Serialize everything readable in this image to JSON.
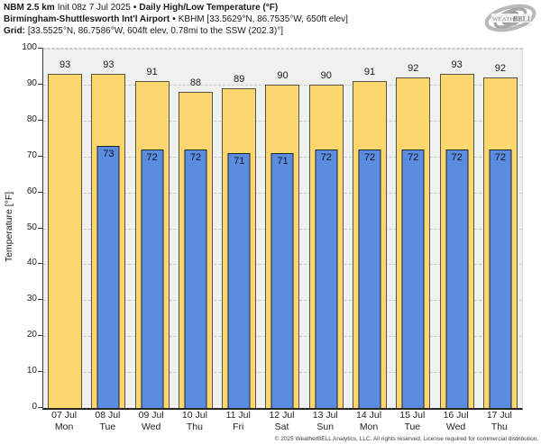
{
  "header": {
    "line1": {
      "model": "NBM 2.5 km",
      "init": "Init 08z 7 Jul 2025",
      "bullet": "•",
      "title": "Daily High/Low Temperature (°F)"
    },
    "line2": {
      "station": "Birmingham-Shuttlesworth Int'l Airport",
      "bullet": "•",
      "details": "KBHM [33.5629°N, 86.7535°W, 650ft elev]"
    },
    "line3": {
      "label": "Grid:",
      "details": "[33.5525°N, 86.7586°W, 604ft elev, 0.78mi to the SSW (202.3)°]"
    }
  },
  "logo": {
    "brand_left": "Weather",
    "brand_right": "BELL",
    "sub": "Analytics LLC"
  },
  "chart_data": {
    "type": "bar",
    "title": "Daily High/Low Temperature (°F)",
    "ylabel": "Temperature [°F]",
    "ylim": [
      0,
      100
    ],
    "ytick_step": 10,
    "grid": "horizontal-dashed",
    "legend_position": "none",
    "categories": [
      {
        "date": "07 Jul",
        "day": "Mon"
      },
      {
        "date": "08 Jul",
        "day": "Tue"
      },
      {
        "date": "09 Jul",
        "day": "Wed"
      },
      {
        "date": "10 Jul",
        "day": "Thu"
      },
      {
        "date": "11 Jul",
        "day": "Fri"
      },
      {
        "date": "12 Jul",
        "day": "Sat"
      },
      {
        "date": "13 Jul",
        "day": "Sun"
      },
      {
        "date": "14 Jul",
        "day": "Mon"
      },
      {
        "date": "15 Jul",
        "day": "Tue"
      },
      {
        "date": "16 Jul",
        "day": "Wed"
      },
      {
        "date": "17 Jul",
        "day": "Thu"
      }
    ],
    "series": [
      {
        "name": "Daily High",
        "color": "#fbd76e",
        "values": [
          93,
          93,
          91,
          88,
          89,
          90,
          90,
          91,
          92,
          93,
          92
        ]
      },
      {
        "name": "Daily Low",
        "color": "#5a8ce0",
        "values": [
          null,
          73,
          72,
          72,
          71,
          71,
          72,
          72,
          72,
          72,
          72
        ]
      }
    ]
  },
  "colors": {
    "high_bar": "#fbd76e",
    "low_bar": "#5a8ce0",
    "high_border": "#56534a",
    "low_border": "#20252e",
    "plot_bg": "#f0f0ef",
    "gridline": "#c9c9c9",
    "axis": "#262626"
  },
  "footer": {
    "copyright": "© 2025 WeatherBELL Analytics, LLC. All rights reserved. License required for commercial distribution."
  }
}
